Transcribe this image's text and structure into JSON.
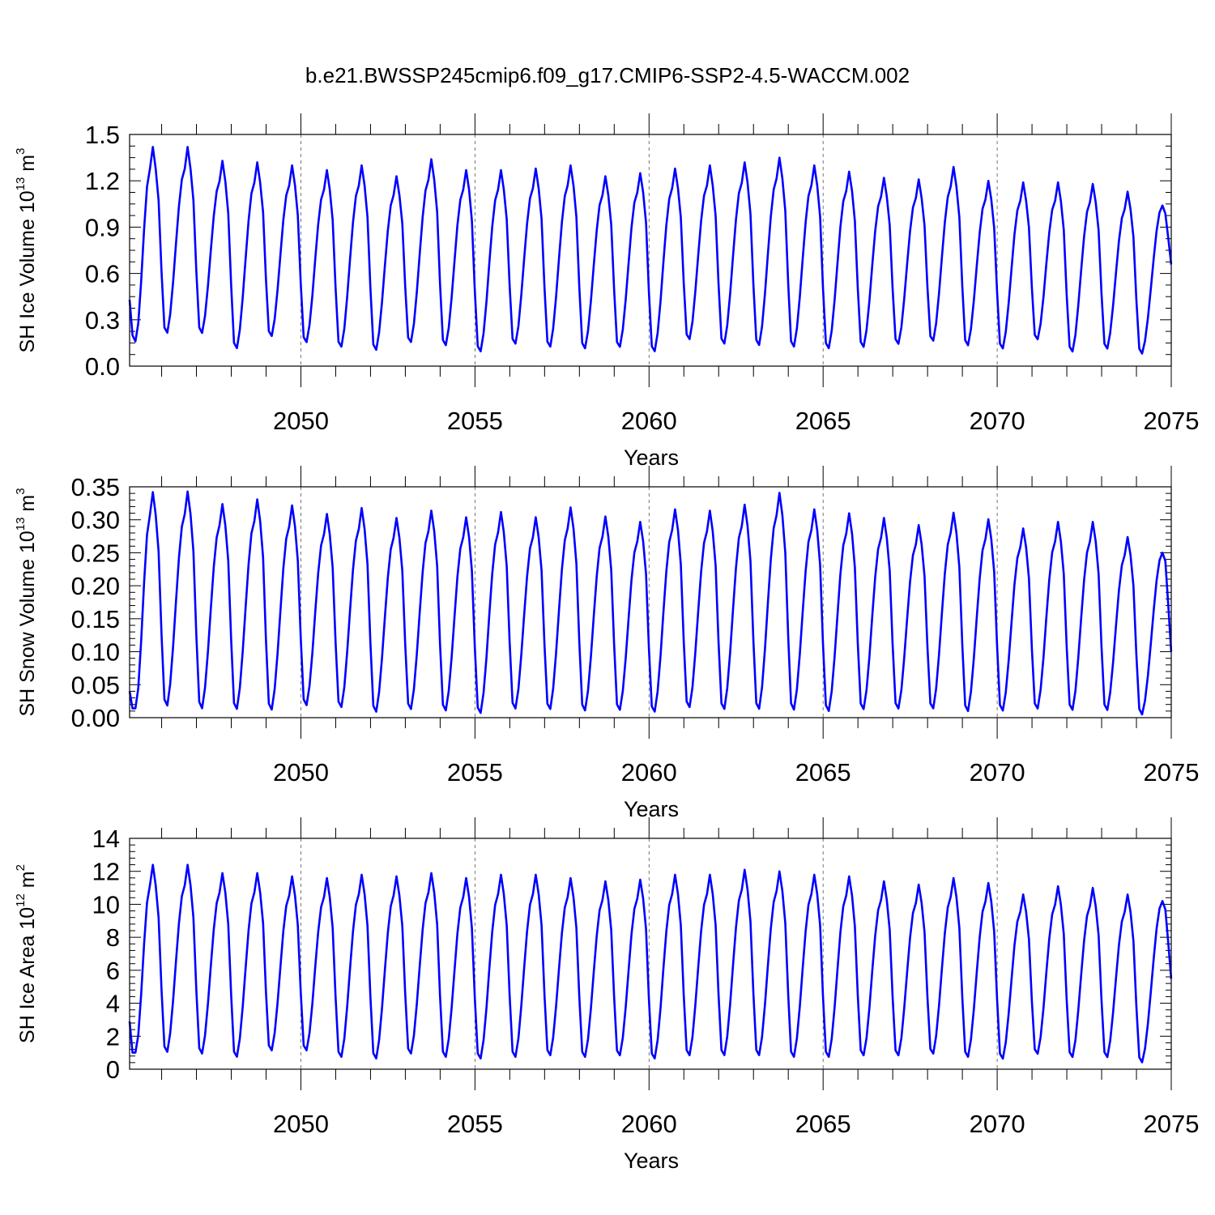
{
  "figure_title": "b.e21.BWSSP245cmip6.f09_g17.CMIP6-SSP2-4.5-WACCM.002",
  "colors": {
    "line": "#0000ff",
    "axis": "#000000",
    "refline": "#555555"
  },
  "chart_data": [
    {
      "type": "line",
      "title": "",
      "ylabel": "SH Ice Volume",
      "ylabel_unit_base": "10",
      "ylabel_unit_exp": "13",
      "ylabel_unit_suffix": "m",
      "ylabel_unit_suffix_exp": "3",
      "xlabel": "Years",
      "xlim": [
        2045.08,
        2075.0
      ],
      "ylim": [
        0.0,
        1.5
      ],
      "yticks": [
        0.0,
        0.3,
        0.6,
        0.9,
        1.2,
        1.5
      ],
      "ytick_labels": [
        "0.0",
        "0.3",
        "0.6",
        "0.9",
        "1.2",
        "1.5"
      ],
      "ytick_minor": 0.075,
      "xticks": [
        2050,
        2055,
        2060,
        2065,
        2070,
        2075
      ],
      "xtick_labels": [
        "2050",
        "2055",
        "2060",
        "2065",
        "2070",
        "2075"
      ],
      "xtick_minor": 1,
      "ref_lines_x": [
        2050,
        2055,
        2060,
        2065,
        2070
      ],
      "series": [
        {
          "name": "SH Ice Volume",
          "start_year": 2045.08,
          "first_values": [
            0.43,
            0.2,
            0.16
          ],
          "annual_peaks": [
            1.42,
            1.42,
            1.33,
            1.32,
            1.3,
            1.27,
            1.3,
            1.23,
            1.34,
            1.27,
            1.27,
            1.28,
            1.3,
            1.23,
            1.25,
            1.28,
            1.3,
            1.32,
            1.35,
            1.3,
            1.26,
            1.22,
            1.21,
            1.29,
            1.2,
            1.19,
            1.19,
            1.18,
            1.13
          ],
          "annual_minima": [
            0.2,
            0.2,
            0.1,
            0.18,
            0.14,
            0.11,
            0.09,
            0.14,
            0.12,
            0.08,
            0.13,
            0.11,
            0.1,
            0.11,
            0.08,
            0.16,
            0.13,
            0.12,
            0.11,
            0.1,
            0.11,
            0.13,
            0.15,
            0.12,
            0.1,
            0.16,
            0.08,
            0.1,
            0.07
          ],
          "last_peak": 1.04,
          "last_value": 0.66
        }
      ]
    },
    {
      "type": "line",
      "title": "",
      "ylabel": "SH Snow Volume",
      "ylabel_unit_base": "10",
      "ylabel_unit_exp": "13",
      "ylabel_unit_suffix": "m",
      "ylabel_unit_suffix_exp": "3",
      "xlabel": "Years",
      "xlim": [
        2045.08,
        2075.0
      ],
      "ylim": [
        0.0,
        0.35
      ],
      "yticks": [
        0.0,
        0.05,
        0.1,
        0.15,
        0.2,
        0.25,
        0.3,
        0.35
      ],
      "ytick_labels": [
        "0.00",
        "0.05",
        "0.10",
        "0.15",
        "0.20",
        "0.25",
        "0.30",
        "0.35"
      ],
      "ytick_minor": 0.01,
      "xticks": [
        2050,
        2055,
        2060,
        2065,
        2070,
        2075
      ],
      "xtick_labels": [
        "2050",
        "2055",
        "2060",
        "2065",
        "2070",
        "2075"
      ],
      "xtick_minor": 1,
      "ref_lines_x": [
        2050,
        2055,
        2060,
        2065,
        2070
      ],
      "series": [
        {
          "name": "SH Snow Volume",
          "start_year": 2045.08,
          "first_values": [
            0.04,
            0.014,
            0.014
          ],
          "annual_peaks": [
            0.342,
            0.343,
            0.324,
            0.331,
            0.322,
            0.309,
            0.318,
            0.303,
            0.314,
            0.304,
            0.312,
            0.304,
            0.319,
            0.305,
            0.297,
            0.316,
            0.314,
            0.323,
            0.341,
            0.316,
            0.31,
            0.303,
            0.292,
            0.311,
            0.301,
            0.287,
            0.297,
            0.297,
            0.274
          ],
          "annual_minima": [
            0.014,
            0.01,
            0.009,
            0.008,
            0.015,
            0.012,
            0.005,
            0.009,
            0.007,
            0.003,
            0.01,
            0.009,
            0.007,
            0.008,
            0.005,
            0.012,
            0.009,
            0.009,
            0.008,
            0.006,
            0.009,
            0.01,
            0.01,
            0.006,
            0.007,
            0.01,
            0.008,
            0.008,
            0.002
          ],
          "last_peak": 0.25,
          "last_value": 0.1
        }
      ]
    },
    {
      "type": "line",
      "title": "",
      "ylabel": "SH Ice Area",
      "ylabel_unit_base": "10",
      "ylabel_unit_exp": "12",
      "ylabel_unit_suffix": "m",
      "ylabel_unit_suffix_exp": "2",
      "xlabel": "Years",
      "xlim": [
        2045.08,
        2075.0
      ],
      "ylim": [
        0,
        14
      ],
      "yticks": [
        0,
        2,
        4,
        6,
        8,
        10,
        12,
        14
      ],
      "ytick_labels": [
        "0",
        "2",
        "4",
        "6",
        "8",
        "10",
        "12",
        "14"
      ],
      "ytick_minor": 0.4,
      "xticks": [
        2050,
        2055,
        2060,
        2065,
        2070,
        2075
      ],
      "xtick_labels": [
        "2050",
        "2055",
        "2060",
        "2065",
        "2070",
        "2075"
      ],
      "xtick_minor": 1,
      "ref_lines_x": [
        2050,
        2055,
        2060,
        2065,
        2070
      ],
      "series": [
        {
          "name": "SH Ice Area",
          "start_year": 2045.08,
          "first_values": [
            2.9,
            1.0,
            1.0
          ],
          "annual_peaks": [
            12.4,
            12.4,
            11.9,
            11.9,
            11.7,
            11.6,
            11.8,
            11.7,
            11.9,
            11.6,
            11.8,
            11.8,
            11.6,
            11.4,
            11.5,
            11.8,
            11.8,
            12.1,
            12.0,
            11.8,
            11.7,
            11.4,
            11.2,
            11.6,
            11.3,
            10.6,
            11.1,
            11.0,
            10.6
          ],
          "annual_minima": [
            0.9,
            0.8,
            0.6,
            1.0,
            1.0,
            0.6,
            0.5,
            0.8,
            0.6,
            0.5,
            0.6,
            0.7,
            0.6,
            0.7,
            0.5,
            0.7,
            0.7,
            0.7,
            0.6,
            0.6,
            0.7,
            0.7,
            0.8,
            0.6,
            0.5,
            0.8,
            0.6,
            0.6,
            0.3
          ],
          "last_peak": 10.2,
          "last_value": 5.5
        }
      ]
    }
  ]
}
